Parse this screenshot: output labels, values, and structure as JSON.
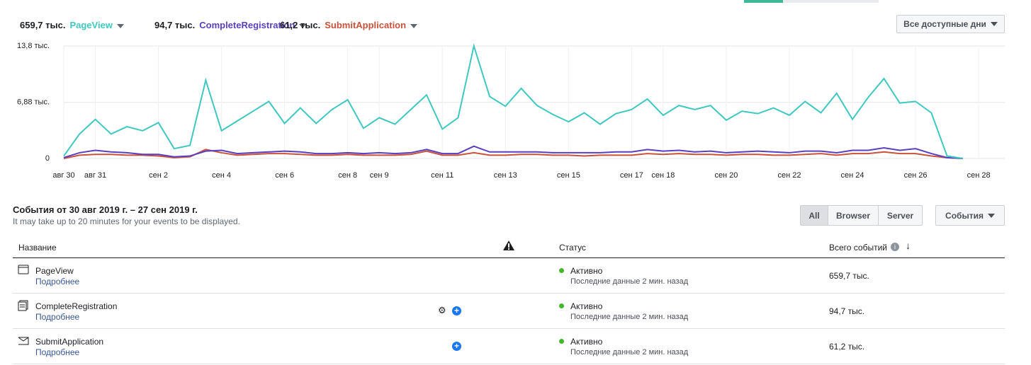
{
  "legend": [
    {
      "total": "659,7 тыс.",
      "name": "PageView"
    },
    {
      "total": "94,7 тыс.",
      "name": "CompleteRegistration"
    },
    {
      "total": "61,2 тыс.",
      "name": "SubmitApplication"
    }
  ],
  "date_range_button": "Все доступные дни",
  "chart_data": {
    "type": "line",
    "x": [
      0,
      0.5,
      1,
      1.5,
      2,
      2.5,
      3,
      3.5,
      4,
      4.5,
      5,
      5.5,
      6,
      6.5,
      7,
      7.5,
      8,
      8.5,
      9,
      9.5,
      10,
      10.5,
      11,
      11.5,
      12,
      12.5,
      13,
      13.5,
      14,
      14.5,
      15,
      15.5,
      16,
      16.5,
      17,
      17.5,
      18,
      18.5,
      19,
      19.5,
      20,
      20.5,
      21,
      21.5,
      22,
      22.5,
      23,
      23.5,
      24,
      24.5,
      25,
      25.5,
      26,
      26.5,
      27,
      27.5,
      28,
      28.5
    ],
    "series": [
      {
        "name": "PageView",
        "color": "#3fc8bf",
        "values": [
          0.3,
          3.0,
          4.8,
          3.0,
          3.9,
          3.4,
          4.4,
          1.2,
          1.6,
          9.6,
          3.4,
          4.6,
          5.8,
          7.0,
          4.3,
          6.2,
          4.3,
          6.0,
          7.2,
          3.7,
          5.0,
          4.2,
          6.0,
          7.8,
          3.6,
          5.0,
          13.8,
          7.6,
          6.4,
          8.6,
          6.5,
          5.4,
          4.5,
          5.6,
          4.2,
          5.5,
          6.0,
          7.3,
          5.3,
          6.5,
          6.0,
          6.5,
          4.7,
          5.8,
          5.5,
          6.2,
          5.3,
          7.0,
          5.6,
          8.0,
          4.8,
          7.5,
          9.8,
          6.8,
          7.0,
          5.6,
          0.3,
          0
        ]
      },
      {
        "name": "CompleteRegistration",
        "color": "#5a3fbf",
        "values": [
          0.1,
          0.7,
          1.0,
          0.8,
          0.7,
          0.5,
          0.5,
          0.2,
          0.3,
          0.9,
          1.0,
          0.6,
          0.7,
          0.8,
          0.9,
          0.8,
          0.6,
          0.6,
          0.7,
          0.6,
          0.7,
          0.6,
          0.7,
          1.1,
          0.6,
          0.6,
          1.5,
          0.8,
          0.8,
          0.8,
          0.8,
          0.7,
          0.7,
          0.7,
          0.7,
          0.8,
          0.8,
          1.1,
          0.9,
          1.0,
          0.8,
          0.9,
          0.7,
          0.8,
          0.9,
          0.8,
          0.7,
          0.9,
          0.9,
          0.7,
          1.0,
          1.0,
          1.3,
          1.0,
          1.2,
          0.6,
          0.1,
          0
        ]
      },
      {
        "name": "SubmitApplication",
        "color": "#c8523b",
        "values": [
          0.0,
          0.4,
          0.5,
          0.5,
          0.4,
          0.4,
          0.3,
          0.1,
          0.2,
          1.1,
          0.7,
          0.4,
          0.5,
          0.6,
          0.6,
          0.5,
          0.4,
          0.4,
          0.5,
          0.4,
          0.4,
          0.4,
          0.5,
          0.9,
          0.4,
          0.4,
          0.7,
          0.4,
          0.4,
          0.5,
          0.5,
          0.4,
          0.4,
          0.3,
          0.4,
          0.4,
          0.4,
          0.6,
          0.5,
          0.6,
          0.5,
          0.5,
          0.4,
          0.5,
          0.5,
          0.4,
          0.4,
          0.5,
          0.6,
          0.4,
          0.6,
          0.6,
          0.8,
          0.6,
          0.6,
          0.3,
          0.1,
          0
        ]
      }
    ],
    "xlim": [
      0,
      29.2
    ],
    "xticks": [
      {
        "value": 0,
        "label": "авг 30"
      },
      {
        "value": 1,
        "label": "авг 31"
      },
      {
        "value": 3,
        "label": "сен 2"
      },
      {
        "value": 5,
        "label": "сен 4"
      },
      {
        "value": 7,
        "label": "сен 6"
      },
      {
        "value": 9,
        "label": "сен 8"
      },
      {
        "value": 10,
        "label": "сен 9"
      },
      {
        "value": 12,
        "label": "сен 11"
      },
      {
        "value": 14,
        "label": "сен 13"
      },
      {
        "value": 16,
        "label": "сен 15"
      },
      {
        "value": 18,
        "label": "сен 17"
      },
      {
        "value": 19,
        "label": "сен 18"
      },
      {
        "value": 21,
        "label": "сен 20"
      },
      {
        "value": 23,
        "label": "сен 22"
      },
      {
        "value": 25,
        "label": "сен 24"
      },
      {
        "value": 27,
        "label": "сен 26"
      },
      {
        "value": 29,
        "label": "сен 28"
      }
    ],
    "ylim": [
      0,
      13.8
    ],
    "yticks": [
      0,
      {
        "value": 6.88,
        "label": "6,88 тыс."
      },
      {
        "value": 13.8,
        "label": "13,8 тыс."
      }
    ],
    "grid": true
  },
  "section": {
    "title": "События от 30 авг 2019 г. – 27 сен 2019 г.",
    "subtitle": "It may take up to 20 minutes for your events to be displayed.",
    "filters": [
      "All",
      "Browser",
      "Server"
    ],
    "events_button": "События"
  },
  "table": {
    "headers": [
      "Название",
      "Статус",
      "Всего событий"
    ],
    "rows": [
      {
        "name": "PageView",
        "link": "Подробнее",
        "status": "Активно",
        "status_detail": "Последние данные 2 мин. назад",
        "total": "659,7 тыс."
      },
      {
        "name": "CompleteRegistration",
        "link": "Подробнее",
        "status": "Активно",
        "status_detail": "Последние данные 2 мин. назад",
        "total": "94,7 тыс."
      },
      {
        "name": "SubmitApplication",
        "link": "Подробнее",
        "status": "Активно",
        "status_detail": "Последние данные 2 мин. назад",
        "total": "61,2 тыс."
      }
    ]
  }
}
